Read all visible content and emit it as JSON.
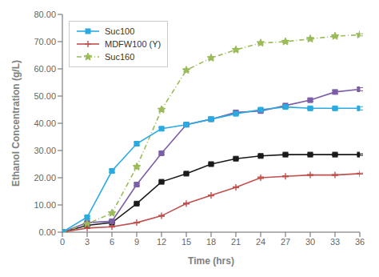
{
  "chart_data": {
    "type": "line",
    "xlabel": "Time (hrs)",
    "ylabel": "Ethanol Concentration (g/L)",
    "x": [
      0,
      3,
      6,
      9,
      12,
      15,
      18,
      21,
      24,
      27,
      30,
      33,
      36
    ],
    "xlim": [
      0,
      36
    ],
    "xticks": [
      0,
      3,
      6,
      9,
      12,
      15,
      18,
      21,
      24,
      27,
      30,
      33,
      36
    ],
    "ylim": [
      0,
      80
    ],
    "yticks": [
      {
        "value": 0,
        "label": "0.00"
      },
      {
        "value": 10,
        "label": "10.00"
      },
      {
        "value": 20,
        "label": "20.00"
      },
      {
        "value": 30,
        "label": "30.00"
      },
      {
        "value": 40,
        "label": "40.00"
      },
      {
        "value": 50,
        "label": "50.00"
      },
      {
        "value": 60,
        "label": "60.00"
      },
      {
        "value": 70,
        "label": "70.00"
      },
      {
        "value": 80,
        "label": "80.00"
      }
    ],
    "grid": false,
    "legend": "upper left",
    "series": [
      {
        "name": "Suc100",
        "color": "#29ABE2",
        "marker": "square",
        "line_style": "solid",
        "values": [
          0.0,
          5.5,
          22.5,
          32.5,
          38.0,
          39.5,
          41.5,
          43.5,
          45.0,
          46.0,
          45.5,
          45.5,
          45.5
        ],
        "error": [
          0,
          0.4,
          0.5,
          0.5,
          0.5,
          0.4,
          0.4,
          0.4,
          0.4,
          0.4,
          0.4,
          0.4,
          0.6
        ]
      },
      {
        "name": "MDFW100 (Y)",
        "color": "#C0504D",
        "marker": "plus",
        "line_style": "solid",
        "values": [
          0.0,
          1.5,
          2.0,
          3.5,
          6.0,
          10.5,
          13.5,
          16.5,
          20.0,
          20.5,
          21.0,
          21.0,
          21.5
        ],
        "error": [
          0,
          0.15,
          0.15,
          0.15,
          0.2,
          0.2,
          0.2,
          0.2,
          0.3,
          0.2,
          0.2,
          0.2,
          0.2
        ]
      },
      {
        "name": "Suc160",
        "color": "#9BBB59",
        "marker": "star",
        "line_style": "dashdot",
        "values": [
          0.0,
          3.0,
          7.0,
          24.0,
          45.0,
          59.5,
          64.0,
          67.0,
          69.5,
          70.0,
          71.0,
          72.0,
          72.5
        ],
        "error": [
          0,
          0.2,
          0.3,
          0.5,
          0.5,
          0.5,
          0.5,
          0.5,
          0.4,
          0.4,
          0.4,
          0.4,
          0.4
        ]
      },
      {
        "color": "#7B5EA7",
        "marker": "square",
        "line_style": "solid",
        "values": [
          0.0,
          3.5,
          4.0,
          17.5,
          29.0,
          39.5,
          41.5,
          44.0,
          44.5,
          46.5,
          48.5,
          51.5,
          52.5
        ],
        "error": [
          0,
          0.3,
          0.3,
          0.4,
          0.4,
          0.4,
          0.4,
          0.4,
          0.4,
          0.4,
          0.4,
          0.6,
          0.6
        ]
      },
      {
        "color": "#1A1A1A",
        "marker": "square",
        "line_style": "solid",
        "values": [
          0.0,
          2.5,
          3.5,
          10.5,
          18.5,
          21.5,
          25.0,
          27.0,
          28.0,
          28.5,
          28.5,
          28.5,
          28.5
        ],
        "error": [
          0,
          0.2,
          0.2,
          0.3,
          0.3,
          0.3,
          0.3,
          0.3,
          0.3,
          0.3,
          0.3,
          0.3,
          0.3
        ]
      }
    ]
  }
}
